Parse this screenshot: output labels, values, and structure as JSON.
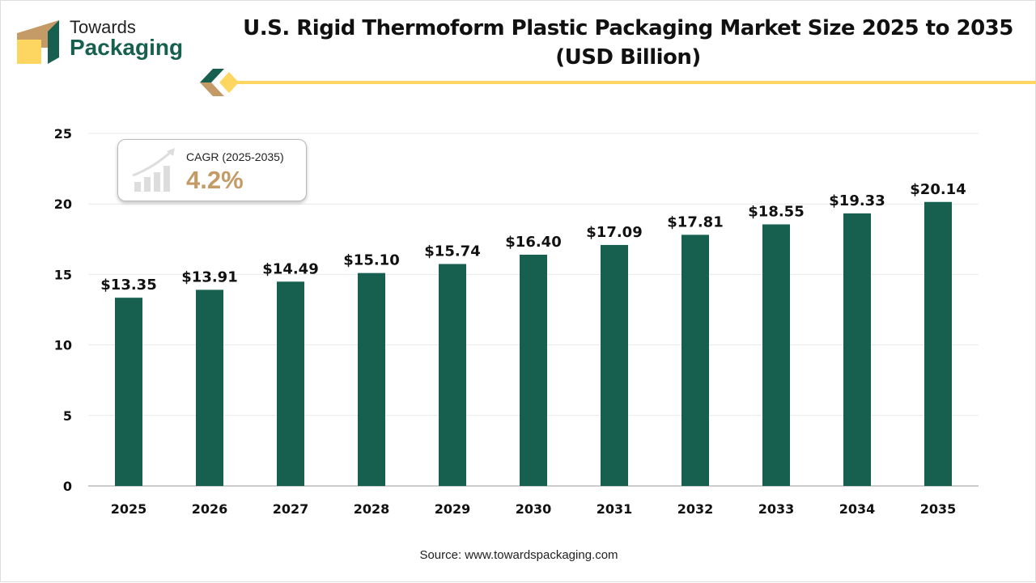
{
  "brand": {
    "line1": "Towards",
    "line2": "Packaging",
    "colors": {
      "green": "#17604f",
      "gold": "#c49a66",
      "yellow": "#fdd662"
    }
  },
  "source": "Source: www.towardspackaging.com",
  "cagr": {
    "label": "CAGR (2025-2035)",
    "value": "4.2%",
    "icon": "growth-chart-icon"
  },
  "chart_data": {
    "type": "bar",
    "title": "U.S. Rigid Thermoform Plastic Packaging Market Size 2025 to 2035",
    "subtitle": "(USD Billion)",
    "categories": [
      "2025",
      "2026",
      "2027",
      "2028",
      "2029",
      "2030",
      "2031",
      "2032",
      "2033",
      "2034",
      "2035"
    ],
    "values": [
      13.35,
      13.91,
      14.49,
      15.1,
      15.74,
      16.4,
      17.09,
      17.81,
      18.55,
      19.33,
      20.14
    ],
    "data_labels": [
      "$13.35",
      "$13.91",
      "$14.49",
      "$15.10",
      "$15.74",
      "$16.40",
      "$17.09",
      "$17.81",
      "$18.55",
      "$19.33",
      "$20.14"
    ],
    "yticks": [
      0,
      5,
      10,
      15,
      20,
      25
    ],
    "ylim": [
      0,
      25
    ],
    "grid": true,
    "bar_color": "#17604f"
  }
}
